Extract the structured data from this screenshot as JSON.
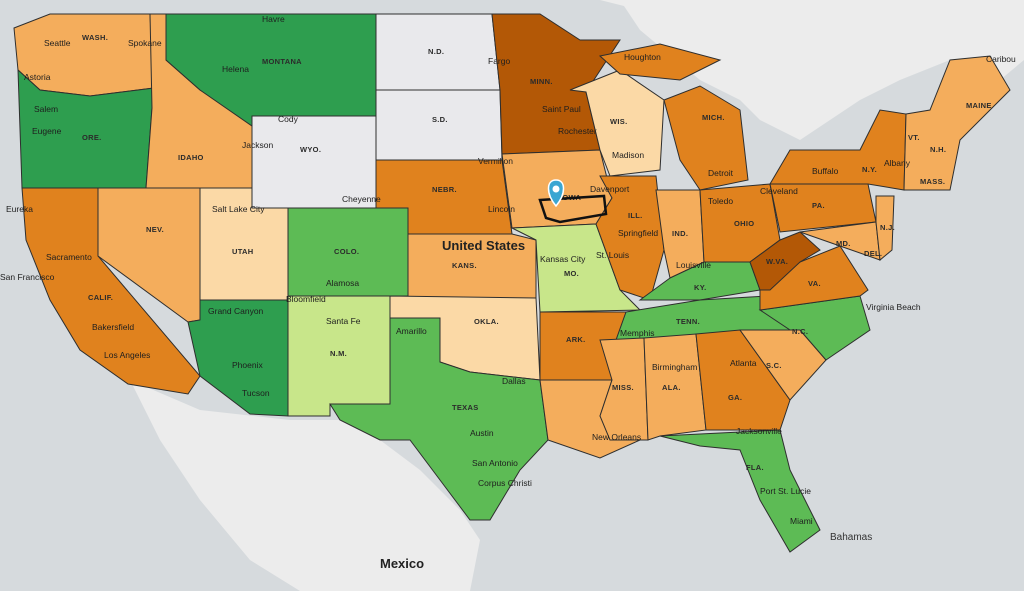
{
  "map": {
    "country_label": "United States",
    "neighbor_labels": [
      "Mexico",
      "Bahamas"
    ],
    "colors": {
      "dark_green": "#2e9e4f",
      "green": "#5dbb55",
      "light_green": "#c8e68a",
      "cream": "#fbd9a6",
      "light_orange": "#f4ad5c",
      "orange": "#e0821e",
      "dark_orange": "#b35806",
      "no_data": "#e9e9ec",
      "ocean": "#d6dadd",
      "land": "#ececec"
    },
    "marker": {
      "icon": "map-pin-icon",
      "color": "#3aa6d2"
    },
    "state_labels": [
      "WASH.",
      "ORE.",
      "CALIF.",
      "NEV.",
      "IDAHO",
      "MONTANA",
      "WYO.",
      "UTAH",
      "COLO.",
      "N.M.",
      "N.D.",
      "S.D.",
      "NEBR.",
      "KANS.",
      "OKLA.",
      "TEXAS",
      "MINN.",
      "IOWA",
      "MO.",
      "ARK.",
      "WIS.",
      "ILL.",
      "MISS.",
      "ALA.",
      "GA.",
      "FLA.",
      "TENN.",
      "KY.",
      "IND.",
      "OHIO",
      "MICH.",
      "W.VA.",
      "VA.",
      "N.C.",
      "S.C.",
      "PA.",
      "N.Y.",
      "MD.",
      "DEL.",
      "N.J.",
      "VT.",
      "N.H.",
      "MASS.",
      "MAINE"
    ],
    "cities": [
      "Seattle",
      "Spokane",
      "Astoria",
      "Salem",
      "Eugene",
      "Eureka",
      "Sacramento",
      "San Francisco",
      "Bakersfield",
      "Los Angeles",
      "Helena",
      "Havre",
      "Cody",
      "Jackson",
      "Salt Lake City",
      "Cheyenne",
      "Grand Canyon",
      "Phoenix",
      "Tucson",
      "Bloomfield",
      "Santa Fe",
      "Alamosa",
      "Amarillo",
      "Dallas",
      "Austin",
      "San Antonio",
      "Corpus Christi",
      "Fargo",
      "Saint Paul",
      "Rochester",
      "Vermilion",
      "Lincoln",
      "Kansas City",
      "Davenport",
      "Springfield",
      "St. Louis",
      "Madison",
      "Houghton",
      "Detroit",
      "Toledo",
      "Louisville",
      "Memphis",
      "Birmingham",
      "Atlanta",
      "New Orleans",
      "Jacksonville",
      "Port St. Lucie",
      "Miami",
      "Cleveland",
      "Buffalo",
      "Albany",
      "Virginia Beach",
      "Caribou"
    ]
  }
}
